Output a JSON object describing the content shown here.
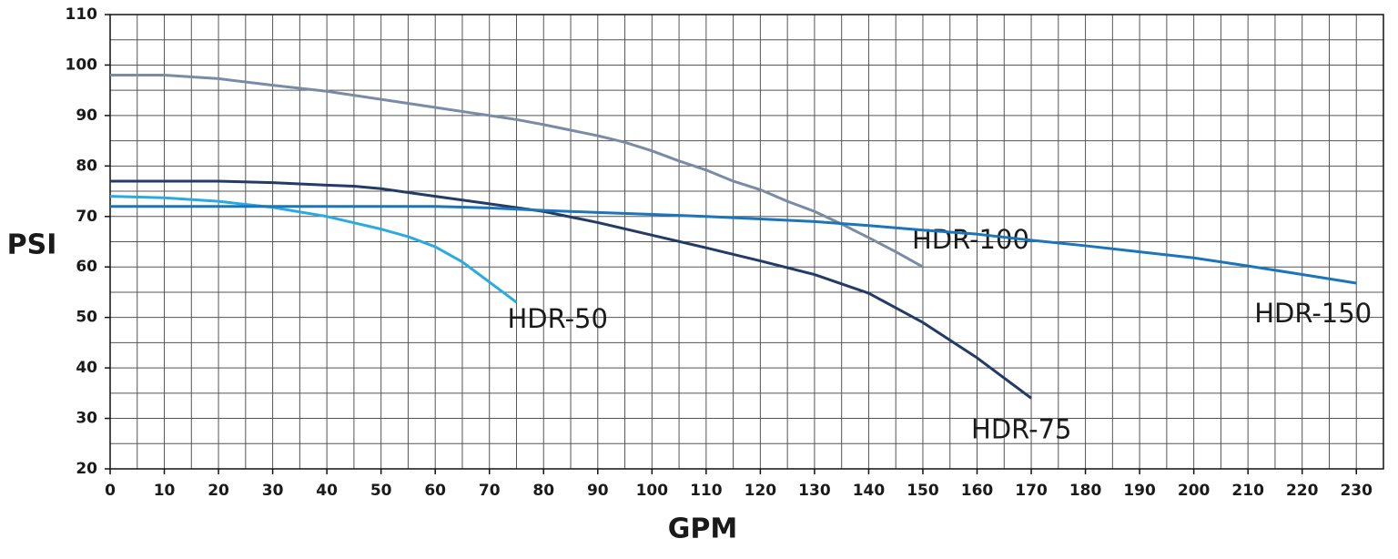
{
  "chart_data": {
    "type": "line",
    "x_label": "GPM",
    "y_label": "PSI",
    "xlim": [
      0,
      235
    ],
    "ylim": [
      20,
      110
    ],
    "xticks": [
      0,
      10,
      20,
      30,
      40,
      50,
      60,
      70,
      80,
      90,
      100,
      110,
      120,
      130,
      140,
      150,
      160,
      170,
      180,
      190,
      200,
      210,
      220,
      230
    ],
    "yticks": [
      20,
      30,
      40,
      50,
      60,
      70,
      80,
      90,
      100,
      110
    ],
    "x_minor_grid": [
      5,
      15,
      25,
      35,
      45,
      55,
      65,
      75,
      85,
      95,
      105,
      115,
      125,
      135,
      145,
      155,
      165,
      175,
      185,
      195,
      205,
      215,
      225,
      235
    ],
    "y_minor_grid": [
      25,
      35,
      45,
      55,
      65,
      75,
      85,
      95,
      105
    ],
    "grid": true,
    "series": [
      {
        "name": "HDR-50",
        "color": "#29abe2",
        "x": [
          0,
          10,
          20,
          30,
          40,
          50,
          55,
          60,
          65,
          70,
          75
        ],
        "values": [
          74,
          73.7,
          73,
          71.8,
          70,
          67.5,
          66,
          64,
          61,
          57,
          53
        ]
      },
      {
        "name": "HDR-75",
        "color": "#233b66",
        "x": [
          0,
          10,
          20,
          30,
          40,
          45,
          50,
          60,
          70,
          80,
          90,
          100,
          110,
          120,
          130,
          140,
          150,
          160,
          170
        ],
        "values": [
          77,
          77,
          77,
          76.7,
          76.2,
          76,
          75.5,
          74,
          72.5,
          71,
          68.8,
          66.3,
          63.8,
          61.2,
          58.5,
          54.8,
          49,
          42,
          34
        ]
      },
      {
        "name": "HDR-100",
        "color": "#7a8ba6",
        "x": [
          0,
          10,
          20,
          30,
          40,
          50,
          60,
          70,
          75,
          80,
          90,
          95,
          100,
          105,
          110,
          115,
          120,
          125,
          130,
          135,
          140,
          145,
          150
        ],
        "values": [
          98,
          98,
          97.3,
          96,
          94.8,
          93.2,
          91.6,
          90,
          89.2,
          88.2,
          86,
          84.7,
          83,
          81,
          79.2,
          77,
          75.3,
          73,
          71,
          68.5,
          65.8,
          63,
          60
        ]
      },
      {
        "name": "HDR-150",
        "color": "#1b75bb",
        "x": [
          0,
          50,
          60,
          70,
          80,
          90,
          100,
          110,
          120,
          130,
          140,
          150,
          160,
          170,
          180,
          190,
          200,
          210,
          220,
          230
        ],
        "values": [
          72,
          72,
          72,
          71.7,
          71.2,
          70.8,
          70.4,
          70,
          69.5,
          69,
          68.2,
          67.3,
          66.5,
          65.3,
          64.2,
          63,
          61.8,
          60.2,
          58.5,
          56.8
        ]
      }
    ]
  }
}
